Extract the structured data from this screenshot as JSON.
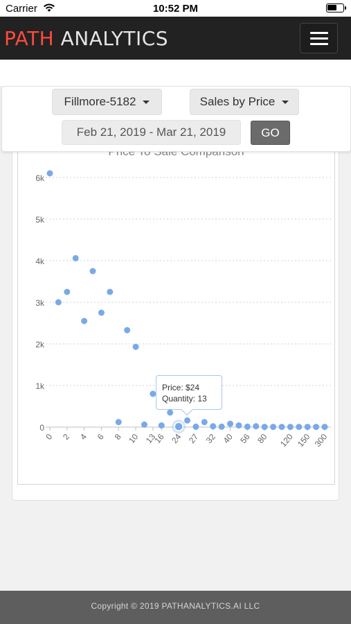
{
  "status_bar": {
    "carrier": "Carrier",
    "time": "10:52 PM"
  },
  "header": {
    "brand_part1": "PATH",
    "brand_part2": " ANALYTICS",
    "brand_color": "#ff4b3d",
    "menu_icon": "hamburger-menu-icon"
  },
  "filters": {
    "location": "Fillmore-5182",
    "report": "Sales by Price",
    "date_range": "Feb 21, 2019 - Mar 21, 2019",
    "go_label": "GO"
  },
  "chart_data": {
    "type": "scatter",
    "title": "Price To Sale Comparison",
    "series_color": "#7aa9e8",
    "grid": true,
    "ylim": [
      0,
      6000
    ],
    "yticks": [
      "0",
      "1k",
      "2k",
      "3k",
      "4k",
      "5k",
      "6k"
    ],
    "xticks": [
      "0",
      "2",
      "4",
      "6",
      "8",
      "10",
      "13",
      "16",
      "24",
      "27",
      "32",
      "40",
      "56",
      "80",
      "120",
      "150",
      "300"
    ],
    "points": [
      {
        "x": "0",
        "y": 6100
      },
      {
        "x": "1",
        "y": 3000
      },
      {
        "x": "2",
        "y": 3250
      },
      {
        "x": "3",
        "y": 4060
      },
      {
        "x": "4",
        "y": 2550
      },
      {
        "x": "5",
        "y": 3750
      },
      {
        "x": "6",
        "y": 2750
      },
      {
        "x": "7",
        "y": 3250
      },
      {
        "x": "8",
        "y": 120
      },
      {
        "x": "9",
        "y": 2330
      },
      {
        "x": "10",
        "y": 1930
      },
      {
        "x": "12",
        "y": 60
      },
      {
        "x": "13",
        "y": 800
      },
      {
        "x": "16",
        "y": 40
      },
      {
        "x": "20",
        "y": 350
      },
      {
        "x": "24",
        "y": 13
      },
      {
        "x": "25",
        "y": 160
      },
      {
        "x": "27",
        "y": 10
      },
      {
        "x": "30",
        "y": 120
      },
      {
        "x": "32",
        "y": 20
      },
      {
        "x": "35",
        "y": 10
      },
      {
        "x": "40",
        "y": 80
      },
      {
        "x": "45",
        "y": 40
      },
      {
        "x": "56",
        "y": 10
      },
      {
        "x": "60",
        "y": 20
      },
      {
        "x": "80",
        "y": 5
      },
      {
        "x": "100",
        "y": 5
      },
      {
        "x": "110",
        "y": 5
      },
      {
        "x": "120",
        "y": 5
      },
      {
        "x": "130",
        "y": 5
      },
      {
        "x": "150",
        "y": 5
      },
      {
        "x": "200",
        "y": 5
      },
      {
        "x": "300",
        "y": 5
      }
    ],
    "highlighted": {
      "x": "24",
      "y": 13
    },
    "tooltip": {
      "price_line": "Price: $24",
      "quantity_line": "Quantity: 13"
    }
  },
  "footer": {
    "copyright": "Copyright © 2019 PATHANALYTICS.AI LLC"
  }
}
